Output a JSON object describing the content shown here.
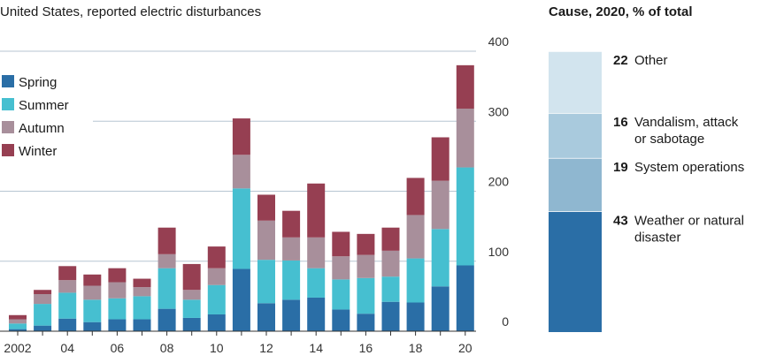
{
  "chart_data": [
    {
      "type": "bar",
      "stacked": true,
      "title": "United States, reported electric disturbances",
      "xlabel": "",
      "ylabel": "",
      "ylim": [
        0,
        400
      ],
      "yticks": [
        0,
        100,
        200,
        300,
        400
      ],
      "grid": true,
      "legend_position": "top-left",
      "categories": [
        "2002",
        "2003",
        "2004",
        "2005",
        "2006",
        "2007",
        "2008",
        "2009",
        "2010",
        "2011",
        "2012",
        "2013",
        "2014",
        "2015",
        "2016",
        "2017",
        "2018",
        "2019",
        "2020"
      ],
      "xtick_labels": [
        "2002",
        "",
        "04",
        "",
        "06",
        "",
        "08",
        "",
        "10",
        "",
        "12",
        "",
        "14",
        "",
        "16",
        "",
        "18",
        "",
        "20"
      ],
      "series": [
        {
          "name": "Spring",
          "color": "#2a6ea6",
          "values": [
            3,
            8,
            18,
            13,
            17,
            17,
            32,
            19,
            24,
            89,
            40,
            45,
            48,
            31,
            25,
            42,
            41,
            64,
            94
          ]
        },
        {
          "name": "Summer",
          "color": "#46bfd0",
          "values": [
            8,
            31,
            37,
            32,
            30,
            33,
            58,
            26,
            42,
            115,
            62,
            56,
            42,
            43,
            51,
            36,
            63,
            82,
            140
          ]
        },
        {
          "name": "Autumn",
          "color": "#a88f9b",
          "values": [
            6,
            14,
            18,
            20,
            23,
            13,
            20,
            14,
            24,
            48,
            56,
            33,
            44,
            33,
            33,
            37,
            62,
            69,
            84
          ]
        },
        {
          "name": "Winter",
          "color": "#963f52",
          "values": [
            6,
            6,
            20,
            16,
            20,
            12,
            38,
            37,
            31,
            52,
            37,
            38,
            77,
            35,
            30,
            33,
            53,
            62,
            62
          ]
        }
      ]
    },
    {
      "type": "bar",
      "stacked": true,
      "title": "Cause, 2020, % of total",
      "categories": [
        "2020"
      ],
      "series": [
        {
          "name": "Weather or natural disaster",
          "value": 43,
          "label_lines": [
            "Weather or natural",
            "disaster"
          ],
          "color": "#2a6ea6"
        },
        {
          "name": "System operations",
          "value": 19,
          "label_lines": [
            "System operations"
          ],
          "color": "#8fb7d0"
        },
        {
          "name": "Vandalism, attack or sabotage",
          "value": 16,
          "label_lines": [
            "Vandalism, attack",
            "or sabotage"
          ],
          "color": "#a9cadd"
        },
        {
          "name": "Other",
          "value": 22,
          "label_lines": [
            "Other"
          ],
          "color": "#d2e4ee"
        }
      ]
    }
  ]
}
